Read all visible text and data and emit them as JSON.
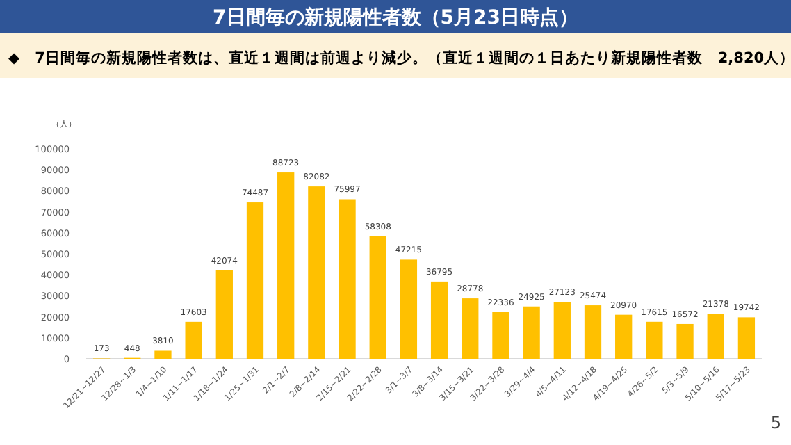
{
  "chart_data": {
    "type": "bar",
    "title": "7日間毎の新規陽性者数（5月23日時点）",
    "subtitle": "◆　7日間毎の新規陽性者数は、直近１週間は前週より減少。（直近１週間の１日あたり新規陽性者数　2,820人）",
    "ylabel": "（人）",
    "categories": [
      "12/21~12/27",
      "12/28~1/3",
      "1/4~1/10",
      "1/11~1/17",
      "1/18~1/24",
      "1/25~1/31",
      "2/1~2/7",
      "2/8~2/14",
      "2/15~2/21",
      "2/22~2/28",
      "3/1~3/7",
      "3/8~3/14",
      "3/15~3/21",
      "3/22~3/28",
      "3/29~4/4",
      "4/5~4/11",
      "4/12~4/18",
      "4/19~4/25",
      "4/26~5/2",
      "5/3~5/9",
      "5/10~5/16",
      "5/17~5/23"
    ],
    "values": [
      173,
      448,
      3810,
      17603,
      42074,
      74487,
      88723,
      82082,
      75997,
      58308,
      47215,
      36795,
      28778,
      22336,
      24925,
      27123,
      25474,
      20970,
      17615,
      16572,
      21378,
      19742
    ],
    "color": "#ffc000",
    "ylim": [
      0,
      100000
    ],
    "yticks": [
      0,
      10000,
      20000,
      30000,
      40000,
      50000,
      60000,
      70000,
      80000,
      90000,
      100000
    ],
    "grid": false,
    "data_labels": true,
    "annotations": [
      "5"
    ]
  }
}
